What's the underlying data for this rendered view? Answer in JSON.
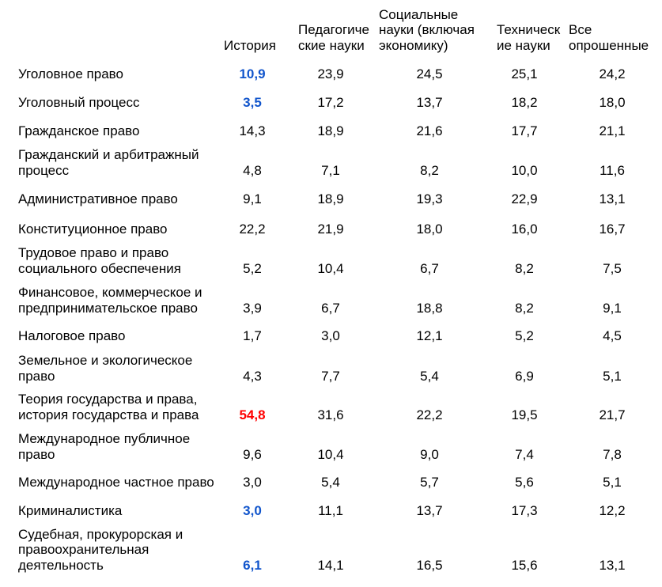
{
  "headers": [
    "",
    "История",
    "Педагогиче\nские науки",
    "Социальные\nнауки (включая\nэкономику)",
    "Техническ\nие науки",
    "Все\nопрошенные"
  ],
  "rows": [
    {
      "label": "Уголовное право",
      "values": [
        "10,9",
        "23,9",
        "24,5",
        "25,1",
        "24,2"
      ],
      "highlight": "blue"
    },
    {
      "label": "Уголовный процесс",
      "values": [
        "3,5",
        "17,2",
        "13,7",
        "18,2",
        "18,0"
      ],
      "highlight": "blue"
    },
    {
      "label": "Гражданское право",
      "values": [
        "14,3",
        "18,9",
        "21,6",
        "17,7",
        "21,1"
      ],
      "highlight": ""
    },
    {
      "label": "Гражданский и арбитражный\nпроцесс",
      "values": [
        "4,8",
        "7,1",
        "8,2",
        "10,0",
        "11,6"
      ],
      "highlight": ""
    },
    {
      "label": "Административное право",
      "values": [
        "9,1",
        "18,9",
        "19,3",
        "22,9",
        "13,1"
      ],
      "highlight": ""
    },
    {
      "label": "Конституционное право",
      "values": [
        "22,2",
        "21,9",
        "18,0",
        "16,0",
        "16,7"
      ],
      "highlight": ""
    },
    {
      "label": "Трудовое право и право\nсоциального обеспечения",
      "values": [
        "5,2",
        "10,4",
        "6,7",
        "8,2",
        "7,5"
      ],
      "highlight": ""
    },
    {
      "label": "Финансовое, коммерческое и\nпредпринимательское право",
      "values": [
        "3,9",
        "6,7",
        "18,8",
        "8,2",
        "9,1"
      ],
      "highlight": ""
    },
    {
      "label": "Налоговое право",
      "values": [
        "1,7",
        "3,0",
        "12,1",
        "5,2",
        "4,5"
      ],
      "highlight": ""
    },
    {
      "label": "Земельное и экологическое\nправо",
      "values": [
        "4,3",
        "7,7",
        "5,4",
        "6,9",
        "5,1"
      ],
      "highlight": ""
    },
    {
      "label": "Теория государства и права,\nистория государства и права",
      "values": [
        "54,8",
        "31,6",
        "22,2",
        "19,5",
        "21,7"
      ],
      "highlight": "red"
    },
    {
      "label": "Международное публичное\nправо",
      "values": [
        "9,6",
        "10,4",
        "9,0",
        "7,4",
        "7,8"
      ],
      "highlight": ""
    },
    {
      "label": "Международное частное право",
      "values": [
        "3,0",
        "5,4",
        "5,7",
        "5,6",
        "5,1"
      ],
      "highlight": ""
    },
    {
      "label": "Криминалистика",
      "values": [
        "3,0",
        "11,1",
        "13,7",
        "17,3",
        "12,2"
      ],
      "highlight": "blue"
    },
    {
      "label": "Судебная, прокурорская и\nправоохранительная\nдеятельность",
      "values": [
        "6,1",
        "14,1",
        "16,5",
        "15,6",
        "13,1"
      ],
      "highlight": "blue"
    }
  ],
  "colors": {
    "blue": "#1155cc",
    "red": "#ff0000"
  }
}
